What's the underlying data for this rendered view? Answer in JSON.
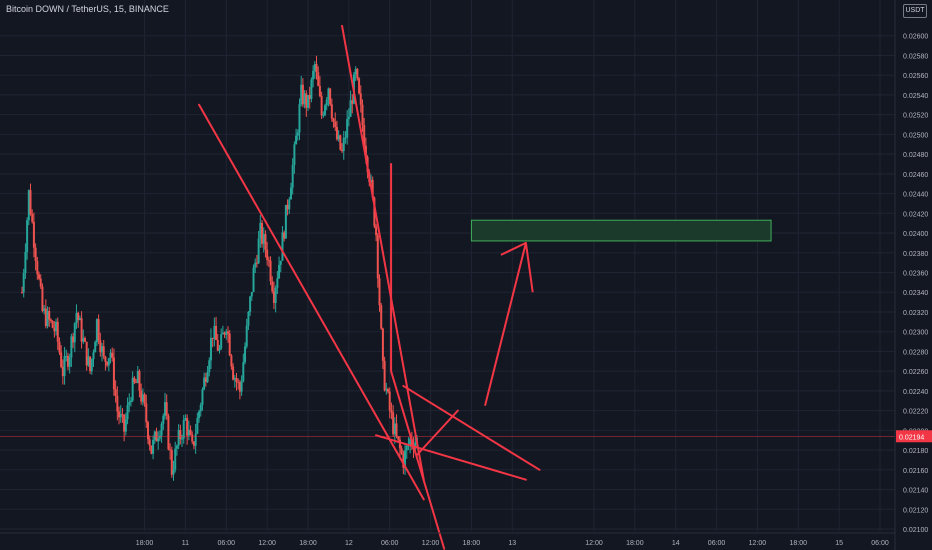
{
  "header": {
    "symbol_line": "Bitcoin DOWN / TetherUS, 15, BINANCE",
    "currency_badge": "USDT"
  },
  "colors": {
    "background": "#131722",
    "grid": "#1f2433",
    "axis_text": "#b2b5be",
    "up": "#26a69a",
    "down": "#ef5350",
    "drawing": "#f23645",
    "zone_fill": "#1b3a2b",
    "zone_stroke": "#3fae5a",
    "price_tag": "#f23645"
  },
  "chart_data": {
    "type": "candlestick",
    "ylim": [
      0.021,
      0.0262
    ],
    "y_ticks": [
      "0.02600",
      "0.02580",
      "0.02560",
      "0.02540",
      "0.02520",
      "0.02500",
      "0.02480",
      "0.02460",
      "0.02440",
      "0.02420",
      "0.02400",
      "0.02380",
      "0.02360",
      "0.02340",
      "0.02320",
      "0.02300",
      "0.02280",
      "0.02260",
      "0.02240",
      "0.02220",
      "0.02200",
      "0.02180",
      "0.02160",
      "0.02140",
      "0.02120",
      "0.02100"
    ],
    "x_ticks": [
      "18:00",
      "11",
      "06:00",
      "12:00",
      "18:00",
      "12",
      "06:00",
      "12:00",
      "18:00",
      "13",
      "12:00",
      "18:00",
      "14",
      "06:00",
      "12:00",
      "18:00",
      "15",
      "06:00"
    ],
    "x_tick_hours": [
      18,
      24,
      30,
      36,
      42,
      48,
      54,
      60,
      66,
      72,
      84,
      90,
      96,
      102,
      108,
      114,
      120,
      126
    ],
    "last_price": "0.02194",
    "last_price_value": 0.02194,
    "price_path": [
      [
        0,
        0.0234
      ],
      [
        1,
        0.0244
      ],
      [
        2,
        0.0238
      ],
      [
        3,
        0.0232
      ],
      [
        5,
        0.023
      ],
      [
        6,
        0.0226
      ],
      [
        7,
        0.0228
      ],
      [
        8,
        0.0232
      ],
      [
        9,
        0.0229
      ],
      [
        10,
        0.0226
      ],
      [
        11,
        0.0231
      ],
      [
        12,
        0.0227
      ],
      [
        13,
        0.0228
      ],
      [
        14,
        0.0222
      ],
      [
        15,
        0.022
      ],
      [
        16,
        0.0224
      ],
      [
        17,
        0.0225
      ],
      [
        18,
        0.0222
      ],
      [
        19,
        0.0218
      ],
      [
        20,
        0.022
      ],
      [
        21,
        0.0222
      ],
      [
        22,
        0.0216
      ],
      [
        23,
        0.0219
      ],
      [
        24,
        0.0221
      ],
      [
        25,
        0.0218
      ],
      [
        26,
        0.0222
      ],
      [
        27,
        0.0226
      ],
      [
        28,
        0.023
      ],
      [
        29,
        0.0228
      ],
      [
        30,
        0.0231
      ],
      [
        31,
        0.0226
      ],
      [
        32,
        0.0224
      ],
      [
        33,
        0.023
      ],
      [
        34,
        0.0236
      ],
      [
        35,
        0.024
      ],
      [
        36,
        0.0238
      ],
      [
        37,
        0.0234
      ],
      [
        38,
        0.0238
      ],
      [
        39,
        0.0243
      ],
      [
        40,
        0.0248
      ],
      [
        41,
        0.0254
      ],
      [
        42,
        0.0253
      ],
      [
        43,
        0.0257
      ],
      [
        44,
        0.0252
      ],
      [
        45,
        0.0255
      ],
      [
        46,
        0.025
      ],
      [
        47,
        0.0248
      ],
      [
        48,
        0.0252
      ],
      [
        49,
        0.0256
      ],
      [
        50,
        0.0251
      ],
      [
        51,
        0.0246
      ],
      [
        52,
        0.024
      ],
      [
        53,
        0.0226
      ],
      [
        54,
        0.0222
      ],
      [
        55,
        0.0219
      ],
      [
        56,
        0.0217
      ],
      [
        57,
        0.0219
      ],
      [
        58,
        0.0219
      ]
    ]
  },
  "annotations": {
    "zone": {
      "from_hour": 66,
      "to_hour": 110,
      "low": 0.02392,
      "high": 0.02413
    },
    "lines": [
      {
        "name": "steep-line",
        "from": [
          47,
          0.0261
        ],
        "to": [
          59,
          0.0215
        ]
      },
      {
        "name": "upper-diag-line",
        "from": [
          26,
          0.0253
        ],
        "to": [
          59,
          0.0213
        ]
      },
      {
        "name": "vertical-drop-line",
        "from": [
          54.2,
          0.0247
        ],
        "to": [
          54.2,
          0.0226
        ]
      },
      {
        "name": "wedge-upper-line",
        "from": [
          54.2,
          0.0226
        ],
        "to": [
          62,
          0.0208
        ]
      },
      {
        "name": "wedge-lower-line",
        "from": [
          56,
          0.02245
        ],
        "to": [
          76,
          0.0216
        ]
      },
      {
        "name": "support-line",
        "from": [
          52,
          0.02195
        ],
        "to": [
          74,
          0.0215
        ]
      },
      {
        "name": "diag-bottom-line",
        "from": [
          58,
          0.02175
        ],
        "to": [
          64,
          0.0222
        ]
      }
    ],
    "arrow": {
      "from": [
        68,
        0.02225
      ],
      "to": [
        74,
        0.0239
      ],
      "head_b": [
        75,
        0.0234
      ]
    }
  }
}
